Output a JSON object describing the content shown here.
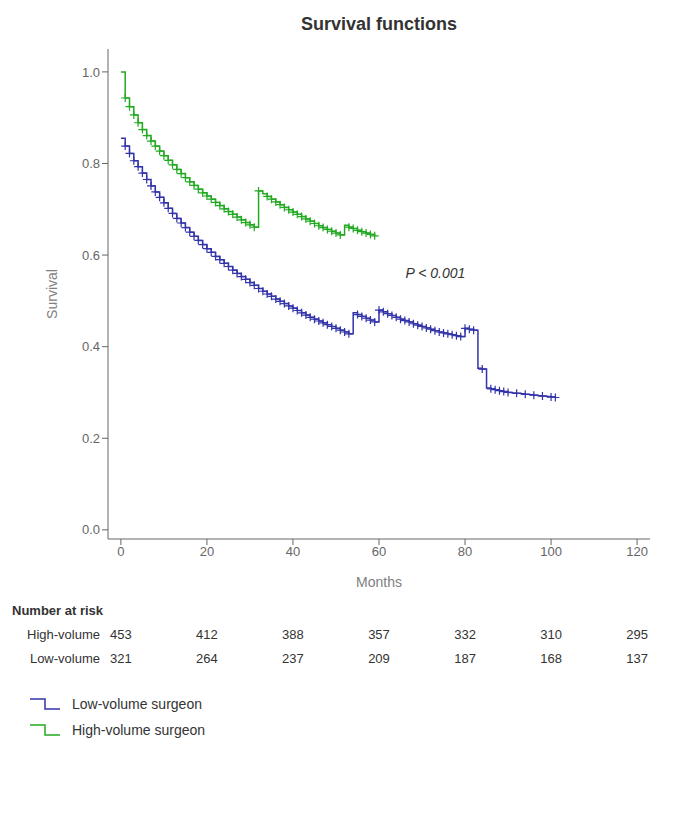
{
  "chart_data": {
    "type": "step",
    "title": "Survival functions",
    "x_label": "Months",
    "y_label": "Survival",
    "xlim": [
      -3,
      123
    ],
    "ylim": [
      -0.02,
      1.05
    ],
    "xticks": [
      0,
      20,
      40,
      60,
      80,
      100,
      120
    ],
    "yticks": [
      {
        "value": 0.0,
        "label": "0.0"
      },
      {
        "value": 0.2,
        "label": "0.2"
      },
      {
        "value": 0.4,
        "label": "0.4"
      },
      {
        "value": 0.6,
        "label": "0.6"
      },
      {
        "value": 0.8,
        "label": "0.8"
      },
      {
        "value": 1.0,
        "label": "1.0"
      }
    ],
    "grid": false,
    "marker": "plus",
    "annotations": [
      {
        "text": "P < 0.001",
        "x": 65,
        "y": 0.56
      }
    ],
    "series": [
      {
        "name": "Low-volume surgeon",
        "color": "#3333aa",
        "x": [
          0,
          1,
          2,
          3,
          4,
          5,
          6,
          7,
          8,
          9,
          10,
          11,
          12,
          13,
          14,
          15,
          16,
          17,
          18,
          19,
          20,
          21,
          22,
          23,
          24,
          25,
          26,
          27,
          28,
          29,
          30,
          31,
          32,
          33,
          34,
          35,
          36,
          37,
          38,
          39,
          40,
          41,
          42,
          43,
          44,
          45,
          46,
          47,
          48,
          49,
          50,
          51,
          52,
          53,
          54,
          55,
          56,
          57,
          58,
          59,
          60,
          61,
          62,
          63,
          64,
          65,
          66,
          67,
          68,
          69,
          70,
          71,
          72,
          73,
          74,
          75,
          76,
          77,
          78,
          79,
          80,
          81,
          82,
          83,
          84,
          85,
          86,
          87,
          88,
          89,
          90,
          91,
          92,
          93,
          94,
          95,
          96,
          97,
          98,
          99,
          100,
          101
        ],
        "values": [
          0.855,
          0.838,
          0.822,
          0.806,
          0.793,
          0.779,
          0.765,
          0.751,
          0.738,
          0.726,
          0.714,
          0.702,
          0.691,
          0.68,
          0.67,
          0.66,
          0.65,
          0.641,
          0.632,
          0.623,
          0.614,
          0.606,
          0.597,
          0.59,
          0.582,
          0.575,
          0.567,
          0.56,
          0.553,
          0.547,
          0.54,
          0.534,
          0.527,
          0.521,
          0.515,
          0.51,
          0.504,
          0.499,
          0.494,
          0.489,
          0.484,
          0.479,
          0.474,
          0.469,
          0.464,
          0.46,
          0.456,
          0.452,
          0.448,
          0.444,
          0.44,
          0.436,
          0.432,
          0.428,
          0.474,
          0.47,
          0.466,
          0.462,
          0.458,
          0.454,
          0.48,
          0.476,
          0.472,
          0.468,
          0.464,
          0.46,
          0.457,
          0.454,
          0.45,
          0.447,
          0.444,
          0.441,
          0.438,
          0.435,
          0.432,
          0.43,
          0.428,
          0.426,
          0.424,
          0.422,
          0.44,
          0.438,
          0.436,
          0.353,
          0.351,
          0.31,
          0.308,
          0.306,
          0.304,
          0.302,
          0.3,
          0.299,
          0.298,
          0.297,
          0.296,
          0.295,
          0.294,
          0.293,
          0.292,
          0.291,
          0.29,
          0.289
        ],
        "censor_x": [
          1,
          2,
          3,
          4,
          5,
          6,
          7,
          8,
          9,
          10,
          11,
          12,
          13,
          14,
          15,
          16,
          17,
          18,
          19,
          20,
          21,
          22,
          23,
          24,
          25,
          26,
          27,
          28,
          29,
          30,
          31,
          32,
          33,
          34,
          35,
          36,
          37,
          38,
          39,
          40,
          41,
          42,
          43,
          44,
          45,
          46,
          47,
          48,
          49,
          50,
          51,
          52,
          53,
          55,
          56,
          57,
          58,
          59,
          60,
          61,
          62,
          63,
          64,
          65,
          66,
          67,
          68,
          69,
          70,
          71,
          72,
          73,
          74,
          75,
          76,
          77,
          78,
          79,
          80,
          81,
          82,
          84,
          86,
          87,
          88,
          89,
          90,
          92,
          94,
          96,
          98,
          100,
          101
        ],
        "censor_values": [
          0.838,
          0.822,
          0.806,
          0.793,
          0.779,
          0.765,
          0.751,
          0.738,
          0.726,
          0.714,
          0.702,
          0.691,
          0.68,
          0.67,
          0.66,
          0.65,
          0.641,
          0.632,
          0.623,
          0.614,
          0.606,
          0.597,
          0.59,
          0.582,
          0.575,
          0.567,
          0.56,
          0.553,
          0.547,
          0.54,
          0.534,
          0.527,
          0.521,
          0.515,
          0.51,
          0.504,
          0.499,
          0.494,
          0.489,
          0.484,
          0.479,
          0.474,
          0.469,
          0.464,
          0.46,
          0.456,
          0.452,
          0.448,
          0.444,
          0.44,
          0.436,
          0.432,
          0.428,
          0.47,
          0.466,
          0.462,
          0.458,
          0.454,
          0.48,
          0.476,
          0.472,
          0.468,
          0.464,
          0.46,
          0.457,
          0.454,
          0.45,
          0.447,
          0.444,
          0.441,
          0.438,
          0.435,
          0.432,
          0.43,
          0.428,
          0.426,
          0.424,
          0.422,
          0.44,
          0.438,
          0.436,
          0.351,
          0.308,
          0.306,
          0.304,
          0.302,
          0.3,
          0.298,
          0.296,
          0.294,
          0.292,
          0.29,
          0.289
        ]
      },
      {
        "name": "High-volume surgeon",
        "color": "#22aa22",
        "x": [
          0,
          1,
          2,
          3,
          4,
          5,
          6,
          7,
          8,
          9,
          10,
          11,
          12,
          13,
          14,
          15,
          16,
          17,
          18,
          19,
          20,
          21,
          22,
          23,
          24,
          25,
          26,
          27,
          28,
          29,
          30,
          31,
          32,
          33,
          34,
          35,
          36,
          37,
          38,
          39,
          40,
          41,
          42,
          43,
          44,
          45,
          46,
          47,
          48,
          49,
          50,
          51,
          52,
          53,
          54,
          55,
          56,
          57,
          58,
          59
        ],
        "values": [
          1.0,
          0.943,
          0.924,
          0.906,
          0.889,
          0.874,
          0.861,
          0.849,
          0.838,
          0.827,
          0.817,
          0.807,
          0.797,
          0.787,
          0.778,
          0.769,
          0.76,
          0.752,
          0.744,
          0.736,
          0.729,
          0.722,
          0.715,
          0.708,
          0.701,
          0.695,
          0.689,
          0.683,
          0.677,
          0.671,
          0.666,
          0.661,
          0.74,
          0.734,
          0.728,
          0.722,
          0.716,
          0.71,
          0.704,
          0.699,
          0.694,
          0.689,
          0.684,
          0.679,
          0.674,
          0.669,
          0.664,
          0.66,
          0.656,
          0.652,
          0.648,
          0.644,
          0.665,
          0.661,
          0.658,
          0.654,
          0.651,
          0.648,
          0.645,
          0.642
        ],
        "censor_x": [
          1,
          2,
          3,
          4,
          5,
          6,
          7,
          8,
          9,
          10,
          11,
          12,
          13,
          14,
          15,
          16,
          17,
          18,
          19,
          20,
          21,
          22,
          23,
          24,
          25,
          26,
          27,
          28,
          29,
          30,
          31,
          32,
          34,
          35,
          36,
          37,
          38,
          39,
          40,
          41,
          42,
          43,
          44,
          45,
          46,
          47,
          48,
          49,
          50,
          51,
          53,
          54,
          55,
          56,
          57,
          58,
          59
        ],
        "censor_values": [
          0.943,
          0.924,
          0.906,
          0.889,
          0.874,
          0.861,
          0.849,
          0.838,
          0.827,
          0.817,
          0.807,
          0.797,
          0.787,
          0.778,
          0.769,
          0.76,
          0.752,
          0.744,
          0.736,
          0.729,
          0.722,
          0.715,
          0.708,
          0.701,
          0.695,
          0.689,
          0.683,
          0.677,
          0.671,
          0.666,
          0.661,
          0.74,
          0.728,
          0.722,
          0.716,
          0.71,
          0.704,
          0.699,
          0.694,
          0.689,
          0.684,
          0.679,
          0.674,
          0.669,
          0.664,
          0.66,
          0.656,
          0.652,
          0.648,
          0.644,
          0.661,
          0.658,
          0.654,
          0.651,
          0.648,
          0.645,
          0.642
        ]
      }
    ],
    "risk_table": {
      "title": "Number at risk",
      "x": [
        0,
        20,
        40,
        60,
        80,
        100,
        120
      ],
      "rows": [
        {
          "name": "High-volume",
          "values": [
            453,
            412,
            388,
            357,
            332,
            310,
            295
          ]
        },
        {
          "name": "Low-volume",
          "values": [
            321,
            264,
            237,
            209,
            187,
            168,
            137
          ]
        }
      ]
    }
  }
}
